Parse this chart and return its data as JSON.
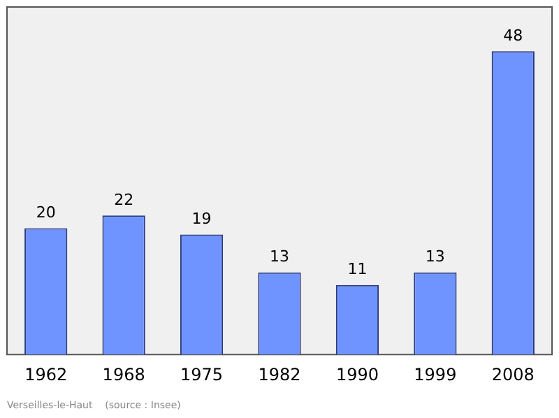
{
  "chart_data": {
    "type": "bar",
    "categories": [
      "1962",
      "1968",
      "1975",
      "1982",
      "1990",
      "1999",
      "2008"
    ],
    "values": [
      20,
      22,
      19,
      13,
      11,
      13,
      48
    ],
    "color": "#7094ff",
    "ylim": [
      0,
      55
    ],
    "data_labels": true,
    "grid": false,
    "legend": false,
    "tick_labels": "x",
    "annotations": [
      "Verseilles-le-Haut    (source : Insee)"
    ]
  }
}
